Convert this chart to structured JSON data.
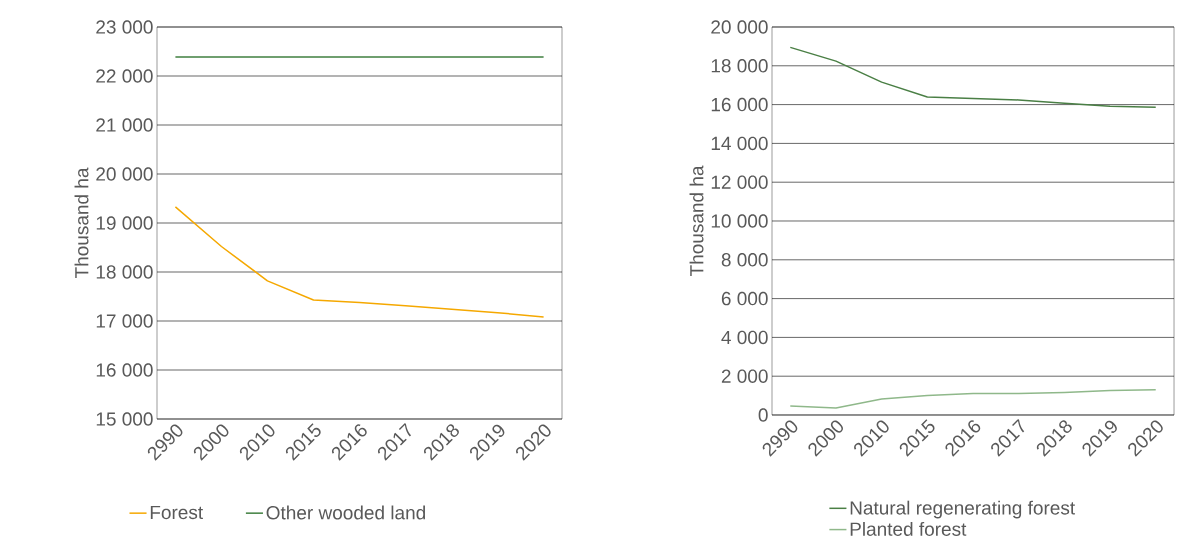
{
  "chart_data": [
    {
      "type": "line",
      "ylabel": "Thousand ha",
      "categories": [
        "2990",
        "2000",
        "2010",
        "2015",
        "2016",
        "2017",
        "2018",
        "2019",
        "2020"
      ],
      "ylim": [
        15000,
        23000
      ],
      "yticks": [
        {
          "value": 15000,
          "label": "15 000"
        },
        {
          "value": 16000,
          "label": "16 000"
        },
        {
          "value": 17000,
          "label": "17 000"
        },
        {
          "value": 18000,
          "label": "18 000"
        },
        {
          "value": 19000,
          "label": "19 000"
        },
        {
          "value": 20000,
          "label": "20 000"
        },
        {
          "value": 21000,
          "label": "21 000"
        },
        {
          "value": 22000,
          "label": "22 000"
        },
        {
          "value": 23000,
          "label": "23 000"
        }
      ],
      "grid": "y",
      "legend": "bottom",
      "marker": "none",
      "line_style": "solid",
      "series": [
        {
          "name": "Forest",
          "color": "#f5a800",
          "values": [
            19330,
            18520,
            17820,
            17430,
            17380,
            17310,
            17240,
            17170,
            17080
          ]
        },
        {
          "name": "Other wooded land",
          "color": "#3f7f3f",
          "values": [
            22390,
            22390,
            22390,
            22390,
            22390,
            22390,
            22390,
            22390,
            22390
          ]
        }
      ]
    },
    {
      "type": "line",
      "ylabel": "Thousand ha",
      "categories": [
        "2990",
        "2000",
        "2010",
        "2015",
        "2016",
        "2017",
        "2018",
        "2019",
        "2020"
      ],
      "ylim": [
        0,
        20000
      ],
      "yticks": [
        0,
        {
          "value": 2000,
          "label": "2 000"
        },
        {
          "value": 4000,
          "label": "4 000"
        },
        {
          "value": 6000,
          "label": "6 000"
        },
        {
          "value": 8000,
          "label": "8 000"
        },
        {
          "value": 10000,
          "label": "10 000"
        },
        {
          "value": 12000,
          "label": "12 000"
        },
        {
          "value": 14000,
          "label": "14 000"
        },
        {
          "value": 16000,
          "label": "16 000"
        },
        {
          "value": 18000,
          "label": "18 000"
        },
        {
          "value": 20000,
          "label": "20 000"
        }
      ],
      "grid": "y",
      "legend": "bottom",
      "marker": "none",
      "line_style": "solid",
      "series": [
        {
          "name": "Natural regenerating forest",
          "color": "#4a7f45",
          "values": [
            18950,
            18240,
            17160,
            16390,
            16320,
            16240,
            16070,
            15920,
            15860
          ]
        },
        {
          "name": "Planted forest",
          "color": "#8fb88a",
          "values": [
            460,
            360,
            820,
            1010,
            1110,
            1110,
            1160,
            1260,
            1300
          ]
        }
      ]
    }
  ]
}
